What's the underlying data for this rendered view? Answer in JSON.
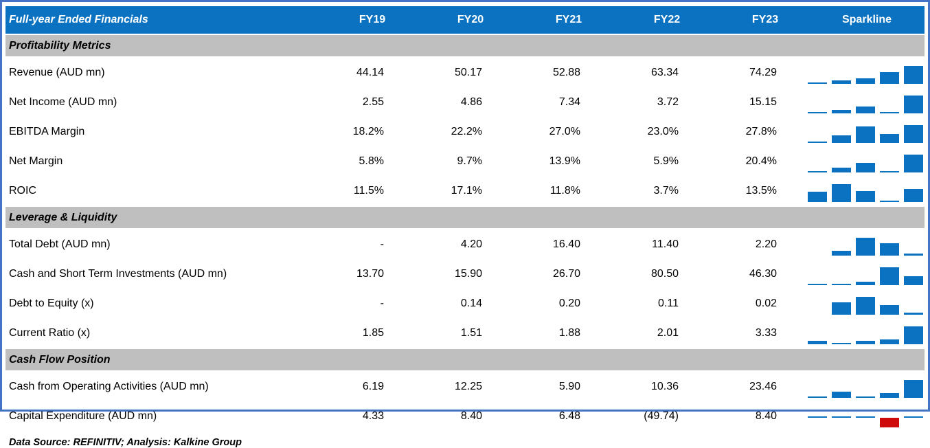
{
  "header": {
    "title": "Full-year Ended Financials",
    "columns": [
      "FY19",
      "FY20",
      "FY21",
      "FY22",
      "FY23"
    ],
    "sparkline_label": "Sparkline"
  },
  "sections": [
    {
      "title": "Profitability Metrics",
      "rows": [
        {
          "label": "Revenue (AUD mn)",
          "values": [
            "44.14",
            "50.17",
            "52.88",
            "63.34",
            "74.29"
          ],
          "nums": [
            44.14,
            50.17,
            52.88,
            63.34,
            74.29
          ]
        },
        {
          "label": "Net Income (AUD mn)",
          "values": [
            "2.55",
            "4.86",
            "7.34",
            "3.72",
            "15.15"
          ],
          "nums": [
            2.55,
            4.86,
            7.34,
            3.72,
            15.15
          ]
        },
        {
          "label": "EBITDA Margin",
          "values": [
            "18.2%",
            "22.2%",
            "27.0%",
            "23.0%",
            "27.8%"
          ],
          "nums": [
            18.2,
            22.2,
            27.0,
            23.0,
            27.8
          ]
        },
        {
          "label": "Net Margin",
          "values": [
            "5.8%",
            "9.7%",
            "13.9%",
            "5.9%",
            "20.4%"
          ],
          "nums": [
            5.8,
            9.7,
            13.9,
            5.9,
            20.4
          ]
        },
        {
          "label": "ROIC",
          "values": [
            "11.5%",
            "17.1%",
            "11.8%",
            "3.7%",
            "13.5%"
          ],
          "nums": [
            11.5,
            17.1,
            11.8,
            3.7,
            13.5
          ]
        }
      ]
    },
    {
      "title": "Leverage & Liquidity",
      "rows": [
        {
          "label": "Total Debt (AUD mn)",
          "values": [
            "-",
            "4.20",
            "16.40",
            "11.40",
            "2.20"
          ],
          "nums": [
            0,
            4.2,
            16.4,
            11.4,
            2.2
          ]
        },
        {
          "label": "Cash and Short Term Investments (AUD mn)",
          "values": [
            "13.70",
            "15.90",
            "26.70",
            "80.50",
            "46.30"
          ],
          "nums": [
            13.7,
            15.9,
            26.7,
            80.5,
            46.3
          ]
        },
        {
          "label": "Debt to Equity (x)",
          "values": [
            "-",
            "0.14",
            "0.20",
            "0.11",
            "0.02"
          ],
          "nums": [
            0,
            0.14,
            0.2,
            0.11,
            0.02
          ]
        },
        {
          "label": "Current Ratio (x)",
          "values": [
            "1.85",
            "1.51",
            "1.88",
            "2.01",
            "3.33"
          ],
          "nums": [
            1.85,
            1.51,
            1.88,
            2.01,
            3.33
          ]
        }
      ]
    },
    {
      "title": "Cash Flow Position",
      "rows": [
        {
          "label": "Cash from Operating Activities (AUD mn)",
          "values": [
            "6.19",
            "12.25",
            "5.90",
            "10.36",
            "23.46"
          ],
          "nums": [
            6.19,
            12.25,
            5.9,
            10.36,
            23.46
          ]
        },
        {
          "label": "Capital Expenditure (AUD mn)",
          "values": [
            "4.33",
            "8.40",
            "6.48",
            "(49.74)",
            "8.40"
          ],
          "nums": [
            4.33,
            8.4,
            6.48,
            -49.74,
            8.4
          ]
        }
      ]
    }
  ],
  "footer": {
    "text": "Data Source: REFINITIV; Analysis: Kalkine Group"
  },
  "colors": {
    "header_bg": "#0b72c1",
    "section_bg": "#bfbfbf",
    "sparkline_positive": "#0b72c1",
    "sparkline_negative": "#ce0a0a",
    "frame_border": "#4472c4",
    "footer_rule": "#1f6fc0"
  }
}
